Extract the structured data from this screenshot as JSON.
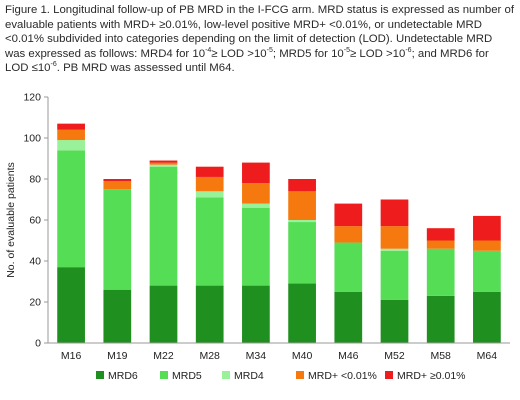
{
  "caption": {
    "segments": [
      {
        "text": "Figure 1. Longitudinal follow-up of PB MRD in the I-FCG arm. MRD status is expressed as number of evaluable patients with MRD+ ≥0.01%, low-level positive MRD+ <0.01%, or undetectable MRD <0.01% subdivided into categories depending on the limit of detection (LOD). Undetectable MRD was expressed as follows: MRD4 for 10",
        "sup": false
      },
      {
        "text": "-4",
        "sup": true
      },
      {
        "text": "≥ LOD >10",
        "sup": false
      },
      {
        "text": "-5",
        "sup": true
      },
      {
        "text": "; MRD5 for 10",
        "sup": false
      },
      {
        "text": "-5",
        "sup": true
      },
      {
        "text": "≥ LOD >10",
        "sup": false
      },
      {
        "text": "-6",
        "sup": true
      },
      {
        "text": "; and MRD6 for LOD ≤10",
        "sup": false
      },
      {
        "text": "-6",
        "sup": true
      },
      {
        "text": ". PB MRD was assessed until M64.",
        "sup": false
      }
    ]
  },
  "chart_data": {
    "type": "bar",
    "stacked": true,
    "categories": [
      "M16",
      "M19",
      "M22",
      "M28",
      "M34",
      "M40",
      "M46",
      "M52",
      "M58",
      "M64"
    ],
    "ylabel": "No. of evaluable patients",
    "xlabel": "",
    "ylim": [
      0,
      120
    ],
    "yticks": [
      0,
      20,
      40,
      60,
      80,
      100,
      120
    ],
    "grid": false,
    "legend_position": "bottom",
    "series": [
      {
        "name": "MRD6",
        "color": "#1f8f1f",
        "values": [
          37,
          26,
          28,
          28,
          28,
          29,
          25,
          21,
          23,
          25
        ]
      },
      {
        "name": "MRD5",
        "color": "#55dd55",
        "values": [
          57,
          49,
          58,
          43,
          38,
          30,
          24,
          24,
          23,
          20
        ]
      },
      {
        "name": "MRD4",
        "color": "#99f299",
        "values": [
          5,
          0,
          1,
          3,
          2,
          1,
          0,
          1,
          0,
          0
        ]
      },
      {
        "name": "MRD+ <0.01%",
        "color": "#f5790f",
        "values": [
          5,
          4,
          1,
          7,
          10,
          14,
          8,
          11,
          4,
          5
        ]
      },
      {
        "name": "MRD+ ≥0.01%",
        "color": "#ee1c1c",
        "values": [
          3,
          1,
          1,
          5,
          10,
          6,
          11,
          13,
          6,
          12
        ]
      }
    ]
  }
}
